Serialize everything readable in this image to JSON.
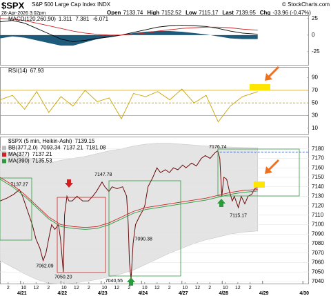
{
  "header": {
    "symbol": "$SPX",
    "name": "S&P 500 Large Cap Index INDX",
    "date": "28-Apr-2026 3:02pm",
    "quote": [
      {
        "label": "Open",
        "value": "7133.74"
      },
      {
        "label": "High",
        "value": "7152.52"
      },
      {
        "label": "Low",
        "value": "7115.17"
      },
      {
        "label": "Last",
        "value": "7139.95"
      },
      {
        "label": "Chg",
        "value": "-33.96 (-0.47%)"
      }
    ],
    "source": "© StockCharts.com"
  },
  "chart_data": [
    {
      "type": "line",
      "title": "MACD(120,260,90)",
      "x": [
        0.49,
        0.8,
        1.1,
        1.4,
        1.7,
        2.0,
        2.3,
        2.6,
        2.9,
        3.2,
        3.5,
        3.8,
        4.1,
        4.4,
        4.7,
        5.0,
        5.3,
        5.6,
        5.9,
        6.2,
        6.5,
        6.88
      ],
      "xlim": [
        0.49,
        8.15
      ],
      "ylim": [
        -46,
        30
      ],
      "yticks": [
        25,
        0,
        -25
      ],
      "grid": false,
      "series": [
        {
          "last_label": "1.311",
          "color": "#000000",
          "values": [
            20,
            22,
            18,
            10,
            2,
            -6,
            -10,
            -8,
            -5,
            -3,
            0,
            4,
            8,
            12,
            14,
            15,
            14,
            13,
            10,
            6,
            3,
            1.311
          ]
        },
        {
          "last_label": "7.381",
          "color": "#d02020",
          "values": [
            25,
            24,
            22,
            18,
            14,
            10,
            6,
            3,
            1,
            0,
            0,
            1,
            3,
            6,
            8,
            10,
            11,
            12,
            12,
            11,
            9,
            7.381
          ]
        },
        {
          "last_label": "-6.071",
          "color": "#1e5a7a",
          "area": true,
          "values": [
            -5,
            -2,
            -4,
            -8,
            -12,
            -16,
            -16,
            -11,
            -6,
            -3,
            0,
            3,
            5,
            6,
            6,
            5,
            3,
            1,
            -2,
            -5,
            -6,
            -6.071
          ]
        }
      ]
    },
    {
      "type": "line",
      "title": "RSI(14)",
      "x": [
        0.49,
        0.8,
        1.1,
        1.4,
        1.7,
        2.0,
        2.3,
        2.6,
        2.9,
        3.2,
        3.5,
        3.8,
        4.1,
        4.4,
        4.7,
        5.0,
        5.3,
        5.6,
        5.9,
        6.2,
        6.5,
        6.88
      ],
      "xlim": [
        0.49,
        8.15
      ],
      "ylim": [
        0,
        107
      ],
      "yticks": [
        90,
        70,
        50,
        30,
        10
      ],
      "grid": false,
      "hlines": [
        {
          "value": 70,
          "color": "#c8a200"
        },
        {
          "value": 50,
          "color": "#c8a200",
          "dashed": true
        },
        {
          "value": 30,
          "color": "#c8a200"
        }
      ],
      "series": [
        {
          "last_label": "67.93",
          "color": "#c8a200",
          "values": [
            55,
            62,
            40,
            68,
            35,
            60,
            45,
            70,
            52,
            58,
            25,
            65,
            60,
            68,
            55,
            72,
            50,
            62,
            20,
            45,
            60,
            67.93
          ]
        }
      ]
    },
    {
      "type": "line",
      "x": [
        0.49,
        0.8,
        1.1,
        1.4,
        1.7,
        2.0,
        2.3,
        2.6,
        2.9,
        3.2,
        3.5,
        3.8,
        4.1,
        4.4,
        4.7,
        5.0,
        5.3,
        5.6,
        5.9,
        6.2,
        6.5,
        6.88
      ],
      "xlim": [
        0.49,
        8.15
      ],
      "ylim": [
        7037,
        7193
      ],
      "yticks": [
        7180,
        7170,
        7160,
        7150,
        7140,
        7130,
        7120,
        7110,
        7100,
        7090,
        7080,
        7070,
        7060,
        7050,
        7040
      ],
      "grid": true,
      "xticks": [
        {
          "value": 0.692,
          "label": "2"
        },
        {
          "value": 1.077,
          "label": "10"
        },
        {
          "value": 1.385,
          "label": "12"
        },
        {
          "value": 1.692,
          "label": "2"
        },
        {
          "value": 2.077,
          "label": "10"
        },
        {
          "value": 2.385,
          "label": "12"
        },
        {
          "value": 2.692,
          "label": "2"
        },
        {
          "value": 3.077,
          "label": "10"
        },
        {
          "value": 3.385,
          "label": "12"
        },
        {
          "value": 3.692,
          "label": "2"
        },
        {
          "value": 4.077,
          "label": "10"
        },
        {
          "value": 4.385,
          "label": "12"
        },
        {
          "value": 4.692,
          "label": "2"
        },
        {
          "value": 5.077,
          "label": "10"
        },
        {
          "value": 5.385,
          "label": "12"
        },
        {
          "value": 5.692,
          "label": "2"
        },
        {
          "value": 6.077,
          "label": "10"
        },
        {
          "value": 6.385,
          "label": "12"
        },
        {
          "value": 6.692,
          "label": "2"
        }
      ],
      "date_ticks": [
        {
          "value": 1,
          "label": "4/21"
        },
        {
          "value": 2,
          "label": "4/22"
        },
        {
          "value": 3,
          "label": "4/23"
        },
        {
          "value": 4,
          "label": "4/24"
        },
        {
          "value": 5,
          "label": "4/27"
        },
        {
          "value": 6,
          "label": "4/28"
        },
        {
          "value": 7,
          "label": "4/29"
        },
        {
          "value": 8,
          "label": "4/30"
        }
      ],
      "hlines": [
        {
          "value": 7176.74,
          "color": "#3050c0",
          "dashed": true,
          "from": 5.94
        }
      ],
      "band": {
        "name": "BB(377,2.0)",
        "labels": [
          "7093.34",
          "7137.21",
          "7181.08"
        ],
        "color": "#e4e4e4",
        "upper": [
          7178,
          7176,
          7172,
          7168,
          7165,
          7168,
          7170,
          7172,
          7175,
          7178,
          7180,
          7183,
          7185,
          7186,
          7186,
          7185,
          7184,
          7183,
          7182,
          7182,
          7181.5,
          7181.08
        ],
        "lower": [
          7062,
          7055,
          7048,
          7042,
          7038,
          7037,
          7038,
          7040,
          7042,
          7045,
          7048,
          7052,
          7058,
          7064,
          7070,
          7075,
          7080,
          7084,
          7087,
          7090,
          7092,
          7093.34
        ]
      },
      "series": [
        {
          "name": "$SPX (5 min, Heikin-Ashi)",
          "last_label": "7139.15",
          "color": "#6a0a0a",
          "x": [
            0.49,
            0.66,
            0.83,
            0.97,
            1.05,
            1.17,
            1.29,
            1.38,
            1.48,
            1.56,
            1.63,
            1.72,
            1.77,
            1.85,
            1.94,
            1.99,
            2.06,
            2.09,
            2.15,
            2.2,
            2.28,
            2.4,
            2.54,
            2.68,
            2.79,
            2.88,
            3.02,
            3.09,
            3.19,
            3.27,
            3.39,
            3.53,
            3.63,
            3.67,
            3.7,
            3.74,
            3.79,
            3.85,
            3.94,
            4.03,
            4.08,
            4.16,
            4.28,
            4.38,
            4.47,
            4.59,
            4.69,
            4.79,
            4.9,
            5.02,
            5.1,
            5.24,
            5.36,
            5.48,
            5.58,
            5.7,
            5.82,
            5.89,
            5.94,
            5.99,
            6.04,
            6.11,
            6.18,
            6.25,
            6.3,
            6.4,
            6.47,
            6.56,
            6.64,
            6.73,
            6.81,
            6.88
          ],
          "values": [
            7125,
            7128,
            7132,
            7137,
            7130,
            7115,
            7100,
            7085,
            7075,
            7062,
            7070,
            7090,
            7100,
            7095,
            7100,
            7085,
            7050,
            7110,
            7130,
            7125,
            7125,
            7130,
            7125,
            7125,
            7130,
            7135,
            7145,
            7140,
            7135,
            7140,
            7138,
            7140,
            7130,
            7100,
            7060,
            7042,
            7080,
            7100,
            7108,
            7115,
            7120,
            7140,
            7150,
            7160,
            7155,
            7158,
            7155,
            7160,
            7158,
            7163,
            7160,
            7165,
            7162,
            7170,
            7173,
            7170,
            7176,
            7178,
            7170,
            7130,
            7150,
            7148,
            7135,
            7125,
            7130,
            7118,
            7130,
            7122,
            7130,
            7132,
            7138,
            7139.15
          ]
        },
        {
          "name": "MA(377)",
          "last_label": "7137.21",
          "color": "#d02020",
          "values": [
            7150,
            7142,
            7132,
            7120,
            7108,
            7100,
            7098,
            7097,
            7098,
            7102,
            7108,
            7114,
            7118,
            7120,
            7122,
            7124,
            7126,
            7128,
            7131,
            7134,
            7136,
            7137.21
          ]
        },
        {
          "name": "MA(390)",
          "last_label": "7135.53",
          "color": "#2a9a3a",
          "values": [
            7148,
            7140,
            7130,
            7118,
            7106,
            7098,
            7096,
            7095,
            7096,
            7100,
            7106,
            7112,
            7116,
            7118,
            7120,
            7122,
            7124,
            7126,
            7129,
            7132,
            7134,
            7135.53
          ]
        }
      ],
      "annotations": [
        {
          "text": "7137.27",
          "x": 0.97,
          "y": 7137.27,
          "pos": "above"
        },
        {
          "text": "7062.09",
          "x": 1.6,
          "y": 7062.09,
          "pos": "below"
        },
        {
          "text": "7050.20",
          "x": 2.06,
          "y": 7050.2,
          "pos": "below"
        },
        {
          "text": "7147.78",
          "x": 3.05,
          "y": 7147.78,
          "pos": "above"
        },
        {
          "text": "7040.55",
          "x": 3.74,
          "y": 7040.55,
          "pos": "left"
        },
        {
          "text": "7090.38",
          "x": 4.05,
          "y": 7090.38,
          "pos": "below"
        },
        {
          "text": "7176.74",
          "x": 5.89,
          "y": 7176.74,
          "pos": "above"
        },
        {
          "text": "7115.17",
          "x": 6.4,
          "y": 7115.17,
          "pos": "below"
        }
      ]
    }
  ]
}
